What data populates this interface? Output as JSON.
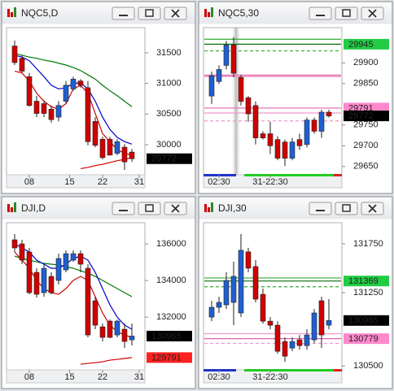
{
  "chart_data": [
    {
      "type": "candlestick",
      "title": "NQC5,D",
      "ylim": [
        29510,
        31910
      ],
      "yticks": [
        30000,
        30500,
        31000,
        31500
      ],
      "xticks": [
        {
          "value": 2,
          "label": "08"
        },
        {
          "value": 7.5,
          "label": "15"
        },
        {
          "value": 12,
          "label": "22"
        },
        {
          "value": 17,
          "label": "31"
        }
      ],
      "up_color": "#1f5fd0",
      "down_color": "#d00000",
      "candles": [
        [
          31610,
          31700,
          31300,
          31340
        ],
        [
          31410,
          31460,
          31170,
          31200
        ],
        [
          31110,
          31170,
          30620,
          30640
        ],
        [
          30710,
          30800,
          30450,
          30510
        ],
        [
          30670,
          30710,
          30450,
          30510
        ],
        [
          30580,
          30640,
          30360,
          30410
        ],
        [
          30450,
          30710,
          30380,
          30640
        ],
        [
          30710,
          31040,
          30670,
          30970
        ],
        [
          30910,
          31110,
          30880,
          31070
        ],
        [
          31040,
          31070,
          30930,
          30970
        ],
        [
          30930,
          31040,
          29990,
          30050
        ],
        [
          30380,
          30450,
          29960,
          29990
        ],
        [
          30090,
          30130,
          29760,
          29790
        ],
        [
          30090,
          30130,
          29830,
          29830
        ],
        [
          29860,
          30090,
          29830,
          30050
        ],
        [
          29960,
          30010,
          29590,
          29720
        ],
        [
          29880,
          29930,
          29720,
          29772
        ]
      ],
      "series": [
        {
          "color": "#007a00",
          "values": [
            31490,
            31460,
            31430,
            31410,
            31380,
            31360,
            31330,
            31300,
            31260,
            31210,
            31140,
            31070,
            30970,
            30880,
            30800,
            30710,
            30620
          ]
        },
        {
          "color": "#0000cc",
          "values": [
            31460,
            31430,
            31370,
            31240,
            31110,
            30970,
            30910,
            30930,
            31000,
            31010,
            30910,
            30710,
            30450,
            30250,
            30120,
            30050,
            30010
          ]
        },
        {
          "color": "#d00000",
          "values": [
            31200,
            31170,
            31040,
            30840,
            30710,
            30620,
            30580,
            30670,
            30910,
            30970,
            30840,
            30510,
            30180,
            30050,
            29920,
            29860,
            29830
          ]
        },
        {
          "color": "#d00000",
          "values": [
            null,
            null,
            null,
            null,
            null,
            null,
            null,
            null,
            null,
            29610,
            29630,
            29660,
            29680,
            29710,
            29740,
            29760,
            29790
          ]
        }
      ],
      "levels": [],
      "price_labels": [
        {
          "value": 29772,
          "color": "#000000",
          "text_color": "#ffffff"
        }
      ]
    },
    {
      "type": "candlestick",
      "title": "NQC5,30",
      "ylim": [
        29630,
        29985
      ],
      "yticks": [
        29650,
        29700,
        29750,
        29850,
        29900
      ],
      "xticks": [
        {
          "value": 1,
          "label": "02:30"
        },
        {
          "value": 8,
          "label": "31-22:30"
        }
      ],
      "up_color": "#1f5fd0",
      "down_color": "#d00000",
      "candles": [
        [
          29820,
          29879,
          29801,
          29869
        ],
        [
          29855,
          29894,
          29849,
          29884
        ],
        [
          29894,
          29953,
          29884,
          29943
        ],
        [
          29943,
          29962,
          29865,
          29875
        ],
        [
          29865,
          29871,
          29797,
          29807
        ],
        [
          29816,
          29820,
          29758,
          29777
        ],
        [
          29797,
          29807,
          29703,
          29719
        ],
        [
          29729,
          29735,
          29715,
          29719
        ],
        [
          29729,
          29758,
          29680,
          29700
        ],
        [
          29715,
          29723,
          29665,
          29670
        ],
        [
          29709,
          29715,
          29651,
          29670
        ],
        [
          29670,
          29719,
          29665,
          29709
        ],
        [
          29715,
          29729,
          29690,
          29700
        ],
        [
          29703,
          29768,
          29696,
          29762
        ],
        [
          29762,
          29768,
          29729,
          29735
        ],
        [
          29735,
          29787,
          29719,
          29781
        ],
        [
          29781,
          29787,
          29768,
          29772
        ]
      ],
      "series": [],
      "levels": [
        {
          "value": 29957,
          "color": "#33aa33"
        },
        {
          "value": 29945,
          "color": "#0b6e0b"
        },
        {
          "value": 29929,
          "color": "#33aa33",
          "dashed": true
        },
        {
          "value": 29869,
          "color": "#ee88bb",
          "width": 3
        },
        {
          "value": 29791,
          "color": "#dd66aa"
        },
        {
          "value": 29779,
          "color": "#ee99cc"
        },
        {
          "value": 29760,
          "color": "#ee99cc",
          "dashed": true
        }
      ],
      "price_labels": [
        {
          "value": 29945,
          "color": "#22cc44",
          "text_color": "#000000"
        },
        {
          "value": 29791,
          "color": "#ff88cc",
          "text_color": "#000000"
        },
        {
          "value": 29772,
          "color": "#000000",
          "text_color": "#ffffff"
        }
      ]
    },
    {
      "type": "candlestick",
      "title": "DJI,D",
      "ylim": [
        129120,
        137155
      ],
      "yticks": [
        132000,
        134000,
        136000
      ],
      "xticks": [
        {
          "value": 2,
          "label": "08"
        },
        {
          "value": 7.5,
          "label": "15"
        },
        {
          "value": 12,
          "label": "22"
        },
        {
          "value": 17,
          "label": "31"
        }
      ],
      "up_color": "#1f5fd0",
      "down_color": "#d00000",
      "candles": [
        [
          136222,
          136533,
          135556,
          135778
        ],
        [
          136000,
          136222,
          134890,
          135112
        ],
        [
          135556,
          135778,
          133247,
          133336
        ],
        [
          134446,
          134668,
          133070,
          133247
        ],
        [
          133336,
          134890,
          133114,
          134668
        ],
        [
          134224,
          134446,
          133247,
          133336
        ],
        [
          134002,
          135467,
          133780,
          135201
        ],
        [
          134579,
          135645,
          134446,
          135467
        ],
        [
          135112,
          135645,
          135023,
          135467
        ],
        [
          135467,
          135645,
          134446,
          134890
        ],
        [
          134668,
          134890,
          130894,
          131027
        ],
        [
          132892,
          133114,
          131338,
          131560
        ],
        [
          131471,
          131649,
          130672,
          130894
        ],
        [
          131782,
          131870,
          130850,
          130894
        ],
        [
          131027,
          131860,
          130894,
          131782
        ],
        [
          131338,
          131649,
          130317,
          130672
        ],
        [
          130760,
          131649,
          130450,
          130965
        ]
      ],
      "series": [
        {
          "color": "#007a00",
          "values": [
            135334,
            135201,
            135112,
            135023,
            134934,
            134890,
            134846,
            134757,
            134668,
            134535,
            134402,
            134224,
            134002,
            133780,
            133558,
            133336,
            133114
          ]
        },
        {
          "color": "#0000cc",
          "values": [
            136000,
            135778,
            135556,
            135112,
            134890,
            134668,
            134668,
            134890,
            135201,
            135334,
            135112,
            134446,
            133558,
            132670,
            132004,
            131560,
            131338
          ]
        },
        {
          "color": "#d00000",
          "values": [
            135556,
            135112,
            134668,
            134002,
            133558,
            133336,
            133247,
            133558,
            134002,
            134224,
            134002,
            133114,
            132226,
            131560,
            131205,
            131027,
            130894
          ]
        },
        {
          "color": "#d00000",
          "values": [
            null,
            null,
            null,
            null,
            null,
            null,
            null,
            null,
            null,
            129429,
            129473,
            129518,
            129562,
            129651,
            129695,
            129740,
            129791
          ]
        }
      ],
      "levels": [],
      "price_labels": [
        {
          "value": 130965,
          "color": "#000000",
          "text_color": "#ffffff"
        },
        {
          "value": 129791,
          "color": "#ff2020",
          "text_color": "#ffffff"
        }
      ]
    },
    {
      "type": "candlestick",
      "title": "DJI,30",
      "ylim": [
        130460,
        131965
      ],
      "yticks": [
        130500,
        131250,
        131750
      ],
      "xticks": [
        {
          "value": 1,
          "label": "02:30"
        },
        {
          "value": 8,
          "label": "31-22:30"
        }
      ],
      "up_color": "#1f5fd0",
      "down_color": "#d00000",
      "candles": [
        [
          131000,
          131167,
          130958,
          131100
        ],
        [
          131100,
          131208,
          131042,
          131150
        ],
        [
          131125,
          131458,
          131083,
          131375
        ],
        [
          131150,
          131567,
          130917,
          131417
        ],
        [
          131042,
          131850,
          131000,
          131683
        ],
        [
          131667,
          131708,
          131458,
          131500
        ],
        [
          131517,
          131583,
          131150,
          131183
        ],
        [
          131233,
          131292,
          130933,
          130958
        ],
        [
          130958,
          131000,
          130875,
          130917
        ],
        [
          130917,
          130958,
          130625,
          130650
        ],
        [
          130750,
          130792,
          130542,
          130600
        ],
        [
          130683,
          130792,
          130650,
          130750
        ],
        [
          130767,
          130817,
          130667,
          130708
        ],
        [
          130708,
          130875,
          130667,
          130817
        ],
        [
          130767,
          131083,
          130733,
          131042
        ],
        [
          131167,
          131208,
          130683,
          130817
        ],
        [
          130917,
          131183,
          130875,
          130965
        ]
      ],
      "series": [],
      "levels": [
        {
          "value": 131400,
          "color": "#33aa33"
        },
        {
          "value": 131369,
          "color": "#0b6e0b"
        },
        {
          "value": 131310,
          "color": "#33aa33",
          "dashed": true
        },
        {
          "value": 130830,
          "color": "#ee99cc"
        },
        {
          "value": 130779,
          "color": "#dd66aa"
        },
        {
          "value": 130730,
          "color": "#ee99cc",
          "dashed": true
        }
      ],
      "price_labels": [
        {
          "value": 131369,
          "color": "#22cc44",
          "text_color": "#000000"
        },
        {
          "value": 130965,
          "color": "#000000",
          "text_color": "#ffffff"
        },
        {
          "value": 130779,
          "color": "#ff88cc",
          "text_color": "#000000"
        }
      ]
    }
  ]
}
